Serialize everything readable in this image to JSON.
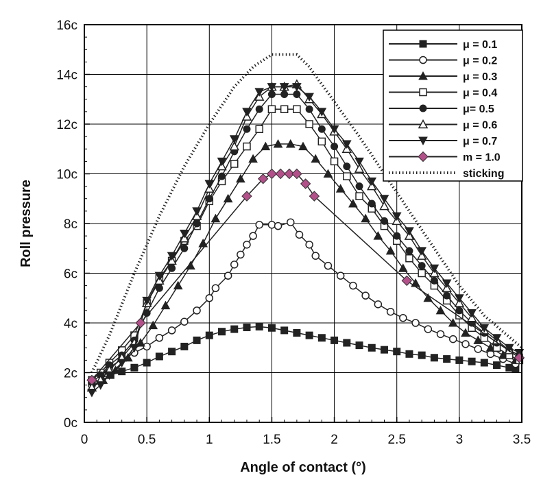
{
  "chart_data": {
    "type": "line",
    "xlabel": "Angle of contact (°)",
    "ylabel": "Roll pressure",
    "xlim": [
      0,
      3.5
    ],
    "ylim": [
      0,
      16
    ],
    "x_ticks": [
      0,
      0.5,
      1,
      1.5,
      2,
      2.5,
      3,
      3.5
    ],
    "x_tick_labels": [
      "0",
      "0.5",
      "1",
      "1.5",
      "2",
      "2.5",
      "3",
      "3.5"
    ],
    "y_ticks": [
      0,
      2,
      4,
      6,
      8,
      10,
      12,
      14,
      16
    ],
    "y_tick_labels": [
      "0c",
      "2c",
      "4c",
      "6c",
      "8c",
      "10c",
      "12c",
      "14c",
      "16c"
    ],
    "grid": true,
    "legend_position": "top-right",
    "series": [
      {
        "name": "μ = 0.1",
        "marker": "square-filled",
        "line": "solid",
        "x": [
          0.06,
          0.13,
          0.21,
          0.3,
          0.4,
          0.5,
          0.6,
          0.7,
          0.8,
          0.9,
          1.0,
          1.1,
          1.2,
          1.3,
          1.4,
          1.5,
          1.6,
          1.7,
          1.8,
          1.9,
          2.0,
          2.1,
          2.2,
          2.3,
          2.4,
          2.5,
          2.6,
          2.7,
          2.8,
          2.9,
          3.0,
          3.1,
          3.2,
          3.3,
          3.4,
          3.45
        ],
        "y": [
          1.65,
          1.8,
          1.9,
          2.05,
          2.2,
          2.4,
          2.65,
          2.85,
          3.05,
          3.3,
          3.5,
          3.65,
          3.75,
          3.82,
          3.85,
          3.8,
          3.7,
          3.6,
          3.5,
          3.4,
          3.3,
          3.2,
          3.1,
          3.0,
          2.92,
          2.85,
          2.75,
          2.7,
          2.6,
          2.55,
          2.5,
          2.45,
          2.4,
          2.3,
          2.2,
          2.15
        ]
      },
      {
        "name": "μ = 0.2",
        "marker": "circle-open",
        "line": "solid",
        "x": [
          0.06,
          0.11,
          0.2,
          0.3,
          0.4,
          0.5,
          0.6,
          0.7,
          0.8,
          0.9,
          1.0,
          1.05,
          1.15,
          1.2,
          1.25,
          1.3,
          1.35,
          1.4,
          1.5,
          1.55,
          1.65,
          1.72,
          1.8,
          1.85,
          1.95,
          2.05,
          2.15,
          2.25,
          2.35,
          2.45,
          2.55,
          2.65,
          2.75,
          2.85,
          2.95,
          3.05,
          3.15,
          3.25,
          3.35,
          3.45
        ],
        "y": [
          1.5,
          1.8,
          2.2,
          2.55,
          2.8,
          3.05,
          3.4,
          3.7,
          4.05,
          4.5,
          5.0,
          5.4,
          5.9,
          6.35,
          6.75,
          7.15,
          7.5,
          7.95,
          7.95,
          7.9,
          8.05,
          7.55,
          7.15,
          6.7,
          6.3,
          5.9,
          5.5,
          5.1,
          4.75,
          4.45,
          4.2,
          4.0,
          3.75,
          3.55,
          3.35,
          3.15,
          2.95,
          2.75,
          2.55,
          2.35
        ]
      },
      {
        "name": "μ = 0.3",
        "marker": "triangle-filled",
        "line": "solid",
        "x": [
          0.06,
          0.15,
          0.25,
          0.35,
          0.45,
          0.55,
          0.65,
          0.75,
          0.85,
          0.95,
          1.05,
          1.15,
          1.25,
          1.35,
          1.45,
          1.55,
          1.65,
          1.75,
          1.85,
          1.95,
          2.05,
          2.15,
          2.25,
          2.35,
          2.45,
          2.55,
          2.65,
          2.75,
          2.85,
          2.95,
          3.05,
          3.15,
          3.25,
          3.35,
          3.45
        ],
        "y": [
          1.4,
          1.7,
          2.1,
          2.6,
          3.2,
          3.9,
          4.7,
          5.5,
          6.3,
          7.2,
          8.2,
          9.0,
          9.8,
          10.6,
          11.1,
          11.2,
          11.2,
          11.1,
          10.6,
          10.0,
          9.4,
          8.8,
          8.2,
          7.5,
          6.9,
          6.2,
          5.6,
          5.0,
          4.5,
          4.0,
          3.6,
          3.3,
          3.0,
          2.7,
          2.5
        ]
      },
      {
        "name": "μ = 0.4",
        "marker": "square-open",
        "line": "solid",
        "x": [
          0.06,
          0.13,
          0.2,
          0.3,
          0.4,
          0.5,
          0.6,
          0.7,
          0.8,
          0.9,
          1.0,
          1.1,
          1.2,
          1.3,
          1.4,
          1.5,
          1.6,
          1.7,
          1.8,
          1.9,
          2.0,
          2.1,
          2.2,
          2.3,
          2.4,
          2.5,
          2.6,
          2.7,
          2.8,
          2.9,
          3.0,
          3.1,
          3.2,
          3.3,
          3.4,
          3.48
        ],
        "y": [
          1.7,
          2.0,
          2.4,
          2.9,
          3.5,
          4.8,
          5.8,
          6.5,
          7.3,
          7.9,
          8.9,
          9.7,
          10.4,
          11.1,
          11.8,
          12.6,
          12.6,
          12.6,
          12.0,
          11.3,
          10.5,
          9.9,
          9.1,
          8.6,
          7.9,
          7.3,
          6.6,
          6.0,
          5.5,
          4.9,
          4.3,
          3.8,
          3.4,
          3.0,
          2.7,
          2.5
        ]
      },
      {
        "name": "μ= 0.5",
        "marker": "circle-filled",
        "line": "solid",
        "x": [
          0.06,
          0.13,
          0.2,
          0.3,
          0.4,
          0.5,
          0.6,
          0.7,
          0.8,
          0.9,
          1.0,
          1.1,
          1.2,
          1.3,
          1.4,
          1.5,
          1.6,
          1.7,
          1.8,
          1.9,
          2.0,
          2.1,
          2.2,
          2.3,
          2.4,
          2.5,
          2.6,
          2.7,
          2.8,
          2.9,
          3.0,
          3.1,
          3.2,
          3.3,
          3.4,
          3.48
        ],
        "y": [
          1.6,
          1.9,
          2.3,
          2.7,
          3.3,
          4.4,
          5.4,
          6.2,
          7.0,
          8.0,
          9.0,
          9.9,
          10.9,
          11.8,
          12.6,
          13.2,
          13.2,
          13.2,
          12.6,
          11.8,
          11.1,
          10.3,
          9.5,
          8.8,
          8.1,
          7.5,
          6.9,
          6.3,
          5.7,
          5.1,
          4.5,
          4.0,
          3.6,
          3.2,
          2.9,
          2.7
        ]
      },
      {
        "name": "μ = 0.6",
        "marker": "triangle-open",
        "line": "solid",
        "x": [
          0.06,
          0.13,
          0.2,
          0.3,
          0.4,
          0.5,
          0.6,
          0.7,
          0.8,
          0.9,
          1.0,
          1.1,
          1.2,
          1.3,
          1.4,
          1.5,
          1.6,
          1.7,
          1.8,
          1.9,
          2.0,
          2.1,
          2.2,
          2.3,
          2.4,
          2.5,
          2.6,
          2.7,
          2.8,
          2.9,
          3.0,
          3.1,
          3.2,
          3.3,
          3.4,
          3.48
        ],
        "y": [
          1.4,
          1.7,
          2.1,
          2.6,
          3.2,
          4.8,
          5.7,
          6.5,
          7.4,
          8.3,
          9.4,
          10.3,
          11.1,
          12.3,
          13.1,
          13.5,
          13.5,
          13.6,
          13.0,
          12.4,
          11.7,
          11.0,
          10.2,
          9.5,
          8.7,
          8.1,
          7.5,
          6.7,
          6.0,
          5.4,
          4.8,
          4.2,
          3.7,
          3.3,
          2.9,
          2.7
        ]
      },
      {
        "name": "μ = 0.7",
        "marker": "triangle-down-filled",
        "line": "solid",
        "x": [
          0.06,
          0.13,
          0.2,
          0.3,
          0.4,
          0.5,
          0.6,
          0.7,
          0.8,
          0.9,
          1.0,
          1.1,
          1.2,
          1.3,
          1.4,
          1.5,
          1.6,
          1.7,
          1.8,
          1.9,
          2.0,
          2.1,
          2.2,
          2.3,
          2.4,
          2.5,
          2.6,
          2.7,
          2.8,
          2.9,
          3.0,
          3.1,
          3.2,
          3.3,
          3.4,
          3.48
        ],
        "y": [
          1.2,
          1.5,
          1.9,
          2.4,
          3.0,
          4.9,
          5.9,
          6.7,
          7.6,
          8.5,
          9.6,
          10.5,
          11.4,
          12.5,
          13.3,
          13.5,
          13.5,
          13.5,
          13.1,
          12.5,
          11.8,
          11.2,
          10.5,
          9.7,
          9.0,
          8.3,
          7.7,
          6.9,
          6.2,
          5.6,
          5.0,
          4.4,
          3.8,
          3.4,
          3.0,
          2.8
        ]
      },
      {
        "name": "m = 1.0",
        "marker": "diamond-pink",
        "line": "solid",
        "x": [
          0.06,
          0.45,
          1.3,
          1.43,
          1.5,
          1.57,
          1.64,
          1.7,
          1.77,
          1.84,
          2.58,
          3.48
        ],
        "y": [
          1.7,
          4.0,
          9.1,
          9.8,
          10.0,
          10.0,
          10.0,
          10.0,
          9.6,
          9.1,
          5.7,
          2.6
        ]
      },
      {
        "name": "sticking",
        "marker": "none",
        "line": "dotted",
        "x": [
          0.06,
          0.2,
          0.4,
          0.6,
          0.8,
          1.0,
          1.2,
          1.35,
          1.5,
          1.6,
          1.7,
          1.8,
          2.0,
          2.2,
          2.4,
          2.6,
          2.8,
          3.0,
          3.2,
          3.5
        ],
        "y": [
          2.0,
          3.5,
          6.0,
          8.3,
          10.3,
          12.0,
          13.5,
          14.3,
          14.8,
          14.8,
          14.8,
          14.3,
          12.9,
          11.5,
          10.0,
          8.5,
          7.0,
          5.5,
          4.3,
          3.0
        ]
      }
    ]
  }
}
